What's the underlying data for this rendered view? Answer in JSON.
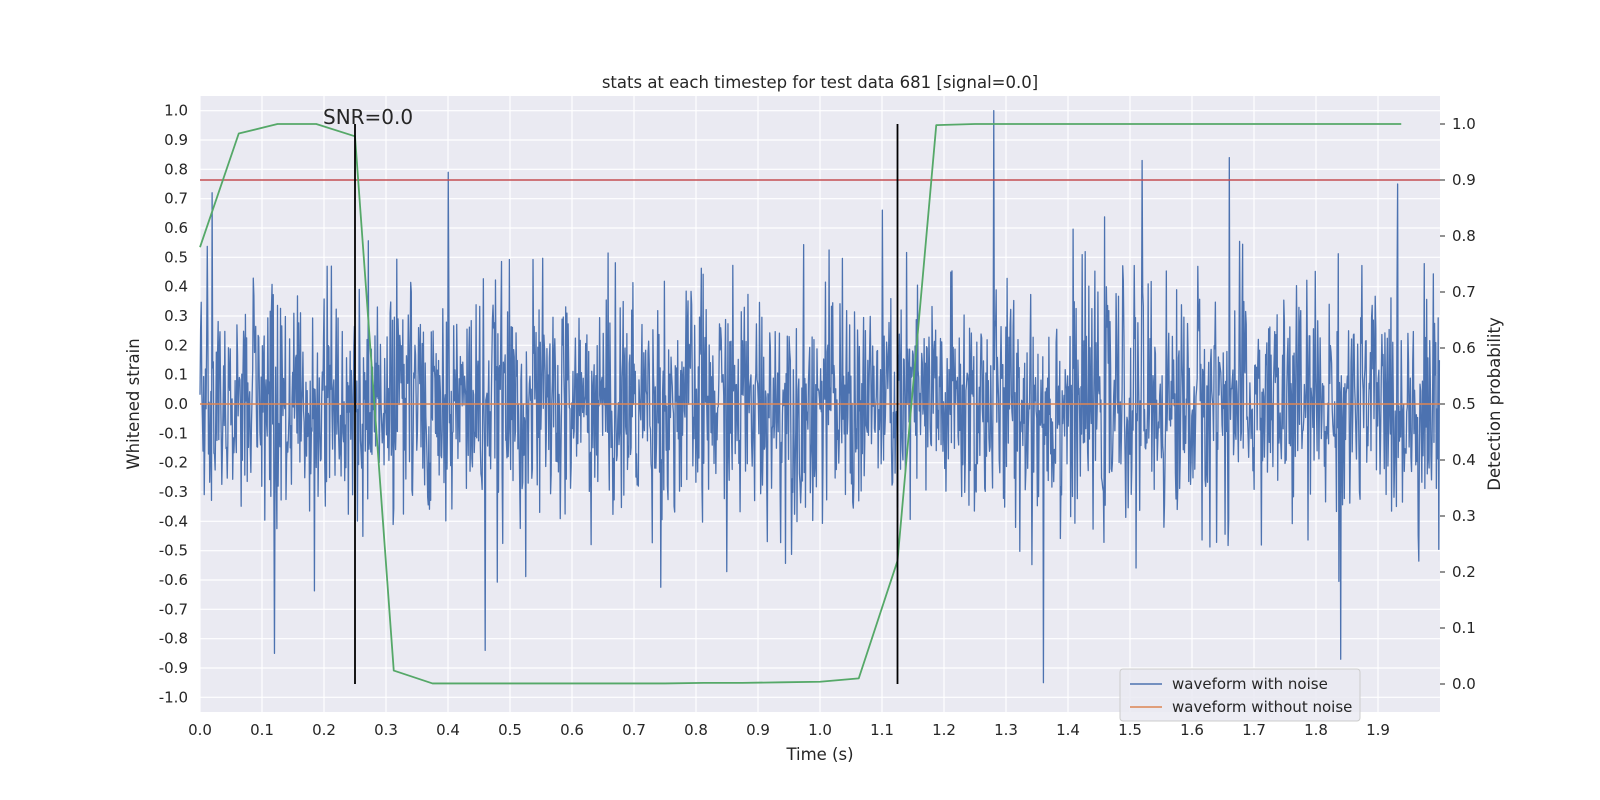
{
  "chart_data": {
    "type": "line",
    "title": "stats at each timestep for test data 681 [signal=0.0]",
    "xlabel": "Time (s)",
    "ylabel": "Whitened strain",
    "y2label": "Detection probability",
    "xlim": [
      0.0,
      2.0
    ],
    "ylim": [
      -1.05,
      1.05
    ],
    "y2lim": [
      -0.05,
      1.05
    ],
    "xticks": [
      "0.0",
      "0.1",
      "0.2",
      "0.3",
      "0.4",
      "0.5",
      "0.6",
      "0.7",
      "0.8",
      "0.9",
      "1.0",
      "1.1",
      "1.2",
      "1.3",
      "1.4",
      "1.5",
      "1.6",
      "1.7",
      "1.8",
      "1.9"
    ],
    "yticks": [
      "1.0",
      "0.9",
      "0.8",
      "0.7",
      "0.6",
      "0.5",
      "0.4",
      "0.3",
      "0.2",
      "0.1",
      "0.0",
      "-0.1",
      "-0.2",
      "-0.3",
      "-0.4",
      "-0.5",
      "-0.6",
      "-0.7",
      "-0.8",
      "-0.9",
      "-1.0"
    ],
    "y2ticks": [
      "1.0",
      "0.9",
      "0.8",
      "0.7",
      "0.6",
      "0.5",
      "0.4",
      "0.3",
      "0.2",
      "0.1",
      "0.0"
    ],
    "grid": true,
    "legend_placement": "lower-right",
    "annotation": "SNR=0.0",
    "series": [
      {
        "name": "waveform with noise",
        "color": "#4c72b0",
        "axis": "left",
        "t_start": 0.0,
        "t_end": 2.0,
        "n_samples": 2048,
        "approx_std": 0.2,
        "min": -0.95,
        "max": 1.0,
        "notable_peaks": [
          {
            "t": 0.02,
            "v": 0.72
          },
          {
            "t": 0.12,
            "v": -0.85
          },
          {
            "t": 0.4,
            "v": 0.79
          },
          {
            "t": 0.46,
            "v": -0.84
          },
          {
            "t": 1.28,
            "v": 1.0
          },
          {
            "t": 1.36,
            "v": -0.95
          },
          {
            "t": 1.52,
            "v": 0.83
          },
          {
            "t": 1.66,
            "v": 0.84
          },
          {
            "t": 1.84,
            "v": -0.87
          }
        ]
      },
      {
        "name": "waveform without noise",
        "color": "#dd8452",
        "axis": "left",
        "x": [
          0.0,
          2.0
        ],
        "y": [
          0.0,
          0.0
        ]
      },
      {
        "color": "#55a868",
        "axis": "right",
        "x": [
          0.0,
          0.0625,
          0.125,
          0.1875,
          0.25,
          0.3125,
          0.375,
          0.4375,
          0.5,
          0.5625,
          0.625,
          0.6875,
          0.75,
          0.8125,
          0.875,
          0.9375,
          1.0,
          1.0625,
          1.125,
          1.1875,
          1.25,
          1.3125,
          1.375,
          1.4375,
          1.5,
          1.5625,
          1.625,
          1.6875,
          1.75,
          1.8125,
          1.875,
          1.9375
        ],
        "y": [
          0.78,
          0.983,
          1.0,
          1.0,
          0.978,
          0.024,
          0.001,
          0.001,
          0.001,
          0.001,
          0.001,
          0.001,
          0.001,
          0.002,
          0.002,
          0.003,
          0.004,
          0.01,
          0.22,
          0.998,
          1.0,
          1.0,
          1.0,
          1.0,
          1.0,
          1.0,
          1.0,
          1.0,
          1.0,
          1.0,
          1.0,
          1.0
        ]
      }
    ],
    "hlines": [
      {
        "y2": 0.9,
        "color": "#c44e52"
      }
    ],
    "vlines": [
      {
        "x": 0.25,
        "y2_from": 0.0,
        "y2_to": 1.0,
        "color": "#000000"
      },
      {
        "x": 1.125,
        "y2_from": 0.0,
        "y2_to": 1.0,
        "color": "#000000"
      }
    ],
    "colors": {
      "plot_bg": "#eaeaf2",
      "grid": "#ffffff"
    }
  }
}
